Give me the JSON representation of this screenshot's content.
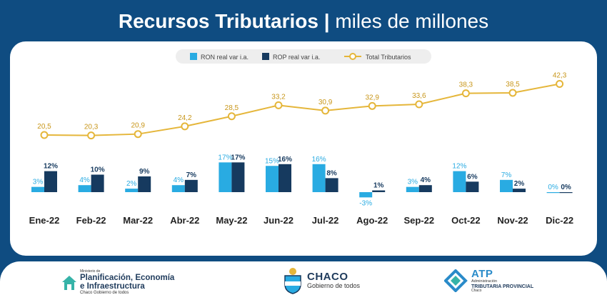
{
  "header": {
    "title_bold": "Recursos Tributarios |",
    "title_light": "miles de millones"
  },
  "colors": {
    "ron": "#29abe2",
    "rop": "#163a5f",
    "total": "#e5b63a",
    "background": "#0f4c81"
  },
  "chart_data": {
    "type": "bar+line",
    "categories": [
      "Ene-22",
      "Feb-22",
      "Mar-22",
      "Abr-22",
      "May-22",
      "Jun-22",
      "Jul-22",
      "Ago-22",
      "Sep-22",
      "Oct-22",
      "Nov-22",
      "Dic-22"
    ],
    "series": [
      {
        "name": "RON real var i.a.",
        "type": "bar",
        "values": [
          3,
          4,
          2,
          4,
          17,
          15,
          16,
          -3,
          3,
          12,
          7,
          0
        ],
        "labels": [
          "3%",
          "4%",
          "2%",
          "4%",
          "17%",
          "15%",
          "16%",
          "-3%",
          "3%",
          "12%",
          "7%",
          "0%"
        ]
      },
      {
        "name": "ROP real var i.a.",
        "type": "bar",
        "values": [
          12,
          10,
          9,
          7,
          17,
          16,
          8,
          1,
          4,
          6,
          2,
          0
        ],
        "labels": [
          "12%",
          "10%",
          "9%",
          "7%",
          "17%",
          "16%",
          "8%",
          "1%",
          "4%",
          "6%",
          "2%",
          "0%"
        ]
      },
      {
        "name": "Total Tributarios",
        "type": "line",
        "values": [
          20.5,
          20.3,
          20.9,
          24.2,
          28.5,
          33.2,
          30.9,
          32.9,
          33.6,
          38.3,
          38.5,
          42.3
        ],
        "labels": [
          "20,5",
          "20,3",
          "20,9",
          "24,2",
          "28,5",
          "33,2",
          "30,9",
          "32,9",
          "33,6",
          "38,3",
          "38,5",
          "42,3"
        ]
      }
    ],
    "legend_position": "top-center",
    "grid": false
  },
  "footer": {
    "ministry": {
      "line1": "Ministerio de",
      "line2": "Planificación, Economía",
      "line3": "e Infraestructura",
      "line4": "Chaco Gobierno de todos"
    },
    "chaco": {
      "name": "CHACO",
      "tagline": "Gobierno de todos"
    },
    "atp": {
      "name": "ATP",
      "line1": "Administración",
      "line2": "TRIBUTARIA PROVINCIAL",
      "line3": "Chaco"
    }
  }
}
